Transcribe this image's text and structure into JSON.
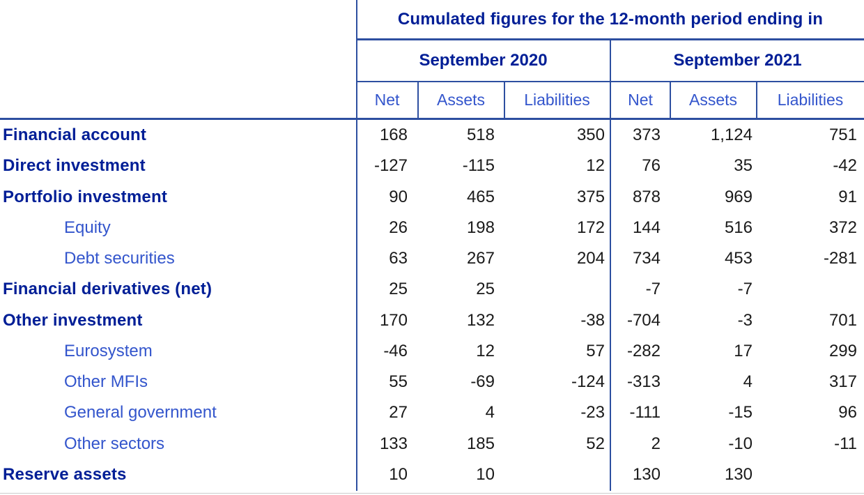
{
  "table": {
    "title": "Cumulated figures for the 12-month period ending in",
    "period_groups": [
      {
        "label": "September 2020"
      },
      {
        "label": "September 2021"
      }
    ],
    "column_headers": [
      "Net",
      "Assets",
      "Liabilities",
      "Net",
      "Assets",
      "Liabilities"
    ],
    "rows": [
      {
        "label": "Financial account",
        "level": "group",
        "values": [
          "168",
          "518",
          "350",
          "373",
          "1,124",
          "751"
        ]
      },
      {
        "label": "Direct investment",
        "level": "group",
        "values": [
          "-127",
          "-115",
          "12",
          "76",
          "35",
          "-42"
        ]
      },
      {
        "label": "Portfolio investment",
        "level": "group",
        "values": [
          "90",
          "465",
          "375",
          "878",
          "969",
          "91"
        ]
      },
      {
        "label": "Equity",
        "level": "sub",
        "values": [
          "26",
          "198",
          "172",
          "144",
          "516",
          "372"
        ]
      },
      {
        "label": "Debt securities",
        "level": "sub",
        "values": [
          "63",
          "267",
          "204",
          "734",
          "453",
          "-281"
        ]
      },
      {
        "label": "Financial derivatives (net)",
        "level": "group",
        "values": [
          "25",
          "25",
          "",
          "-7",
          "-7",
          ""
        ]
      },
      {
        "label": "Other investment",
        "level": "group",
        "values": [
          "170",
          "132",
          "-38",
          "-704",
          "-3",
          "701"
        ]
      },
      {
        "label": "Eurosystem",
        "level": "sub",
        "values": [
          "-46",
          "12",
          "57",
          "-282",
          "17",
          "299"
        ]
      },
      {
        "label": "Other MFIs",
        "level": "sub",
        "values": [
          "55",
          "-69",
          "-124",
          "-313",
          "4",
          "317"
        ]
      },
      {
        "label": "General government",
        "level": "sub",
        "values": [
          "27",
          "4",
          "-23",
          "-111",
          "-15",
          "96"
        ]
      },
      {
        "label": "Other sectors",
        "level": "sub",
        "values": [
          "133",
          "185",
          "52",
          "2",
          "-10",
          "-11"
        ]
      },
      {
        "label": "Reserve assets",
        "level": "group",
        "values": [
          "10",
          "10",
          "",
          "130",
          "130",
          ""
        ]
      }
    ]
  },
  "colors": {
    "heading_navy": "#001e96",
    "subheading_blue": "#3355cc",
    "border_blue": "#2d4fa0",
    "value_text": "#1a1a1a"
  }
}
